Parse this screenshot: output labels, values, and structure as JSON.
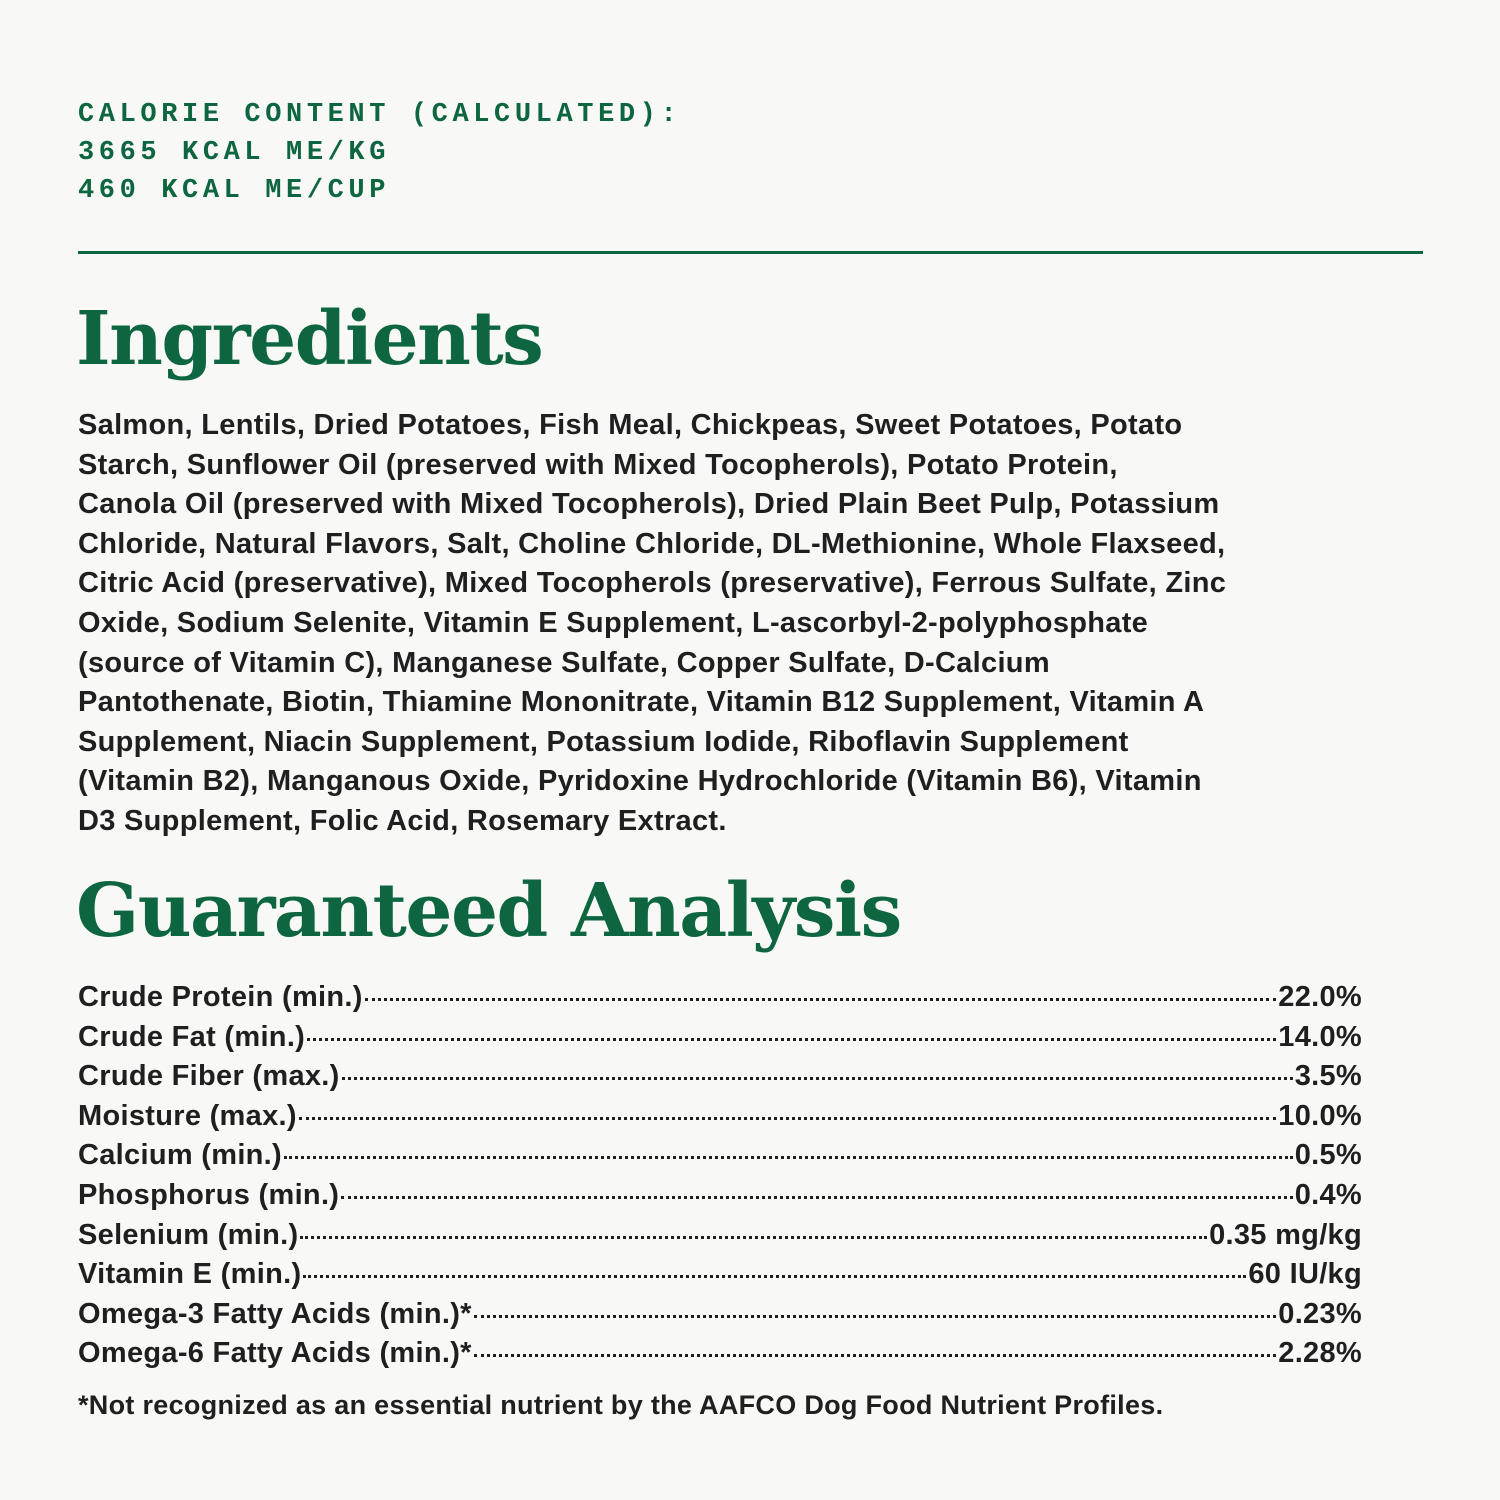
{
  "colors": {
    "accent": "#0d6640",
    "text": "#1f1f1f",
    "background": "#f8f8f6"
  },
  "calorie": {
    "heading": "CALORIE CONTENT (CALCULATED):",
    "per_kg": "3665 KCAL ME/KG",
    "per_cup": "460 KCAL ME/CUP"
  },
  "ingredients": {
    "title": "Ingredients",
    "lines": [
      "Salmon, Lentils, Dried Potatoes, Fish Meal, Chickpeas, Sweet Potatoes, Potato",
      "Starch, Sunflower Oil (preserved with Mixed Tocopherols), Potato Protein,",
      "Canola Oil (preserved with Mixed Tocopherols), Dried Plain Beet Pulp, Potassium",
      "Chloride, Natural Flavors, Salt, Choline Chloride, DL-Methionine, Whole Flaxseed,",
      "Citric Acid (preservative), Mixed Tocopherols (preservative), Ferrous Sulfate, Zinc",
      "Oxide, Sodium Selenite, Vitamin E Supplement, L-ascorbyl-2-polyphosphate",
      "(source of Vitamin C), Manganese Sulfate, Copper Sulfate, D-Calcium",
      "Pantothenate, Biotin, Thiamine Mononitrate, Vitamin B12 Supplement, Vitamin A",
      "Supplement, Niacin Supplement, Potassium Iodide, Riboflavin Supplement",
      "(Vitamin B2), Manganous Oxide, Pyridoxine Hydrochloride (Vitamin B6), Vitamin",
      "D3 Supplement, Folic Acid, Rosemary Extract."
    ]
  },
  "analysis": {
    "title": "Guaranteed Analysis",
    "rows": [
      {
        "label": "Crude Protein (min.)",
        "value": "22.0%"
      },
      {
        "label": "Crude Fat (min.)",
        "value": "14.0%"
      },
      {
        "label": "Crude Fiber (max.)",
        "value": "3.5%"
      },
      {
        "label": "Moisture (max.)",
        "value": "10.0%"
      },
      {
        "label": "Calcium (min.)",
        "value": "0.5%"
      },
      {
        "label": "Phosphorus (min.)",
        "value": "0.4%"
      },
      {
        "label": "Selenium (min.)",
        "value": "0.35 mg/kg"
      },
      {
        "label": "Vitamin E (min.)",
        "value": "60 IU/kg"
      },
      {
        "label": "Omega-3 Fatty Acids (min.)*",
        "value": "0.23%"
      },
      {
        "label": "Omega-6 Fatty Acids (min.)*",
        "value": "2.28%"
      }
    ],
    "footnote": "*Not recognized as an essential nutrient by the AAFCO Dog Food Nutrient Profiles."
  }
}
